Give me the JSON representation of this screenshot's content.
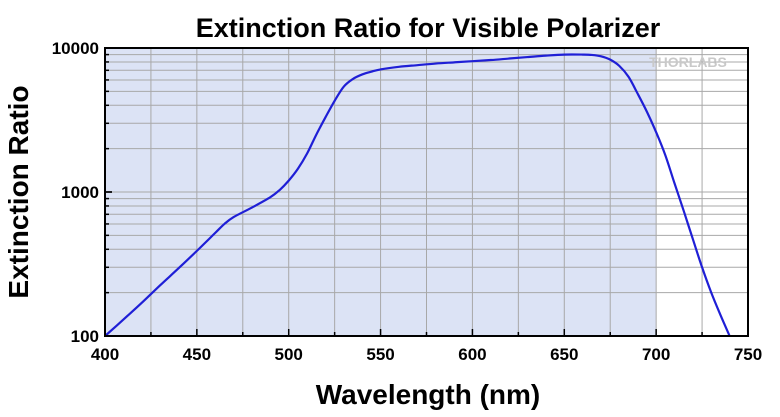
{
  "chart_data": {
    "type": "line",
    "title": "Extinction Ratio for Visible Polarizer",
    "xlabel": "Wavelength (nm)",
    "ylabel": "Extinction Ratio",
    "xlim": [
      400,
      750
    ],
    "ylim": [
      100,
      10000
    ],
    "yscale": "log",
    "xticks": [
      400,
      450,
      500,
      550,
      600,
      650,
      700,
      750
    ],
    "xtick_labels": [
      "400",
      "450",
      "500",
      "550",
      "600",
      "650",
      "700",
      "750"
    ],
    "yticks": [
      100,
      1000,
      10000
    ],
    "ytick_labels": [
      "100",
      "1000",
      "10000"
    ],
    "grid": true,
    "shaded_region": [
      400,
      700
    ],
    "watermark": "THORLABS",
    "line_color": "#1f1fd6",
    "shade_color": "#dce3f5",
    "series": [
      {
        "x": [
          400,
          410,
          420,
          430,
          440,
          450,
          460,
          465,
          470,
          480,
          490,
          495,
          500,
          505,
          510,
          515,
          520,
          525,
          530,
          535,
          540,
          545,
          550,
          560,
          570,
          580,
          590,
          600,
          610,
          620,
          630,
          640,
          650,
          660,
          665,
          670,
          675,
          680,
          685,
          690,
          695,
          700,
          705,
          710,
          715,
          720,
          725,
          730,
          735,
          740
        ],
        "y": [
          100,
          130,
          170,
          225,
          295,
          390,
          520,
          600,
          670,
          780,
          920,
          1030,
          1200,
          1450,
          1850,
          2500,
          3300,
          4300,
          5400,
          6100,
          6550,
          6850,
          7100,
          7400,
          7600,
          7800,
          7950,
          8100,
          8250,
          8450,
          8650,
          8850,
          9000,
          9000,
          8950,
          8750,
          8300,
          7500,
          6300,
          4800,
          3600,
          2600,
          1800,
          1150,
          740,
          470,
          300,
          200,
          140,
          100
        ]
      }
    ]
  }
}
